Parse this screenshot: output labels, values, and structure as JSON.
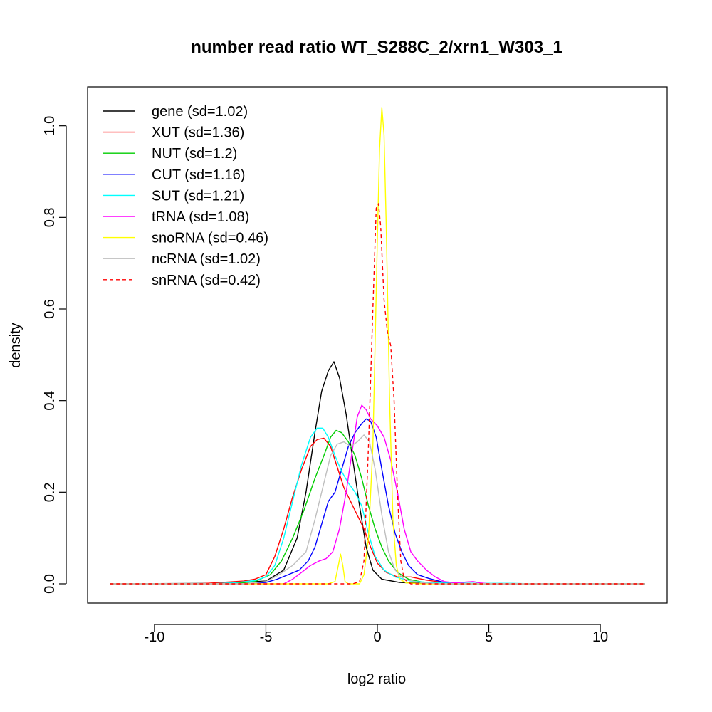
{
  "chart_data": {
    "type": "line",
    "title": "number read ratio WT_S288C_2/xrn1_W303_1",
    "xlabel": "log2 ratio",
    "ylabel": "density",
    "xlim": [
      -13,
      13
    ],
    "ylim": [
      -0.042,
      1.085
    ],
    "x_ticks": [
      -10,
      -5,
      0,
      5,
      10
    ],
    "x_tick_labels": [
      "-10",
      "-5",
      "0",
      "5",
      "10"
    ],
    "y_ticks": [
      0,
      0.2,
      0.4,
      0.6,
      0.8,
      1.0
    ],
    "y_tick_labels": [
      "0.0",
      "0.2",
      "0.4",
      "0.6",
      "0.8",
      "1.0"
    ],
    "grid": false,
    "legend_position": "top-left",
    "series": [
      {
        "name": "gene",
        "legend_label": "gene (sd=1.02)",
        "color": "#000000",
        "dash": "solid",
        "points": [
          [
            -12,
            0
          ],
          [
            -7,
            0.001
          ],
          [
            -5,
            0.006
          ],
          [
            -4.2,
            0.03
          ],
          [
            -3.6,
            0.1
          ],
          [
            -3.2,
            0.2
          ],
          [
            -2.8,
            0.33
          ],
          [
            -2.5,
            0.42
          ],
          [
            -2.2,
            0.465
          ],
          [
            -1.95,
            0.485
          ],
          [
            -1.7,
            0.45
          ],
          [
            -1.4,
            0.37
          ],
          [
            -1.1,
            0.27
          ],
          [
            -0.8,
            0.17
          ],
          [
            -0.5,
            0.08
          ],
          [
            -0.2,
            0.03
          ],
          [
            0.2,
            0.01
          ],
          [
            1,
            0.003
          ],
          [
            2,
            0.001
          ],
          [
            3,
            0
          ],
          [
            12,
            0
          ]
        ]
      },
      {
        "name": "XUT",
        "legend_label": "XUT (sd=1.36)",
        "color": "#ff0000",
        "dash": "solid",
        "points": [
          [
            -12,
            0
          ],
          [
            -8,
            0
          ],
          [
            -7,
            0.003
          ],
          [
            -6,
            0.006
          ],
          [
            -5.5,
            0.01
          ],
          [
            -5,
            0.02
          ],
          [
            -4.6,
            0.06
          ],
          [
            -4.2,
            0.12
          ],
          [
            -3.8,
            0.19
          ],
          [
            -3.4,
            0.25
          ],
          [
            -3,
            0.3
          ],
          [
            -2.7,
            0.315
          ],
          [
            -2.4,
            0.318
          ],
          [
            -2.1,
            0.3
          ],
          [
            -1.8,
            0.255
          ],
          [
            -1.5,
            0.21
          ],
          [
            -1.2,
            0.18
          ],
          [
            -0.9,
            0.15
          ],
          [
            -0.6,
            0.12
          ],
          [
            -0.3,
            0.08
          ],
          [
            0,
            0.045
          ],
          [
            0.4,
            0.025
          ],
          [
            0.9,
            0.015
          ],
          [
            1.5,
            0.015
          ],
          [
            2.2,
            0.008
          ],
          [
            3,
            0.003
          ],
          [
            4,
            0.001
          ],
          [
            5,
            0
          ],
          [
            12,
            0
          ]
        ]
      },
      {
        "name": "NUT",
        "legend_label": "NUT (sd=1.2)",
        "color": "#00cd00",
        "dash": "solid",
        "points": [
          [
            -12,
            0
          ],
          [
            -6.5,
            0
          ],
          [
            -5.5,
            0.005
          ],
          [
            -4.8,
            0.02
          ],
          [
            -4.3,
            0.05
          ],
          [
            -3.8,
            0.1
          ],
          [
            -3.3,
            0.16
          ],
          [
            -2.8,
            0.23
          ],
          [
            -2.4,
            0.28
          ],
          [
            -2.1,
            0.32
          ],
          [
            -1.85,
            0.335
          ],
          [
            -1.6,
            0.33
          ],
          [
            -1.3,
            0.31
          ],
          [
            -1.0,
            0.28
          ],
          [
            -0.7,
            0.23
          ],
          [
            -0.4,
            0.17
          ],
          [
            -0.1,
            0.12
          ],
          [
            0.2,
            0.08
          ],
          [
            0.5,
            0.05
          ],
          [
            0.9,
            0.025
          ],
          [
            1.4,
            0.01
          ],
          [
            2,
            0.004
          ],
          [
            3,
            0.001
          ],
          [
            4,
            0
          ],
          [
            12,
            0
          ]
        ]
      },
      {
        "name": "CUT",
        "legend_label": "CUT (sd=1.16)",
        "color": "#0000ff",
        "dash": "solid",
        "points": [
          [
            -12,
            0
          ],
          [
            -6,
            0
          ],
          [
            -5,
            0.003
          ],
          [
            -4.5,
            0.01
          ],
          [
            -4,
            0.02
          ],
          [
            -3.5,
            0.03
          ],
          [
            -3.1,
            0.05
          ],
          [
            -2.8,
            0.08
          ],
          [
            -2.5,
            0.13
          ],
          [
            -2.2,
            0.18
          ],
          [
            -1.9,
            0.2
          ],
          [
            -1.6,
            0.25
          ],
          [
            -1.3,
            0.3
          ],
          [
            -1.0,
            0.33
          ],
          [
            -0.7,
            0.35
          ],
          [
            -0.5,
            0.36
          ],
          [
            -0.3,
            0.355
          ],
          [
            -0.05,
            0.32
          ],
          [
            0.2,
            0.25
          ],
          [
            0.5,
            0.17
          ],
          [
            0.8,
            0.11
          ],
          [
            1.1,
            0.07
          ],
          [
            1.4,
            0.04
          ],
          [
            1.8,
            0.02
          ],
          [
            2.3,
            0.012
          ],
          [
            3,
            0.003
          ],
          [
            4,
            0.001
          ],
          [
            5,
            0
          ],
          [
            12,
            0
          ]
        ]
      },
      {
        "name": "SUT",
        "legend_label": "SUT (sd=1.21)",
        "color": "#00ffff",
        "dash": "solid",
        "points": [
          [
            -12,
            0
          ],
          [
            -7.5,
            0
          ],
          [
            -6.5,
            0.002
          ],
          [
            -5.5,
            0.007
          ],
          [
            -5,
            0.015
          ],
          [
            -4.6,
            0.04
          ],
          [
            -4.2,
            0.1
          ],
          [
            -3.8,
            0.18
          ],
          [
            -3.4,
            0.26
          ],
          [
            -3.0,
            0.32
          ],
          [
            -2.7,
            0.34
          ],
          [
            -2.45,
            0.34
          ],
          [
            -2.2,
            0.32
          ],
          [
            -1.9,
            0.28
          ],
          [
            -1.6,
            0.245
          ],
          [
            -1.3,
            0.22
          ],
          [
            -1.0,
            0.2
          ],
          [
            -0.7,
            0.17
          ],
          [
            -0.4,
            0.11
          ],
          [
            -0.1,
            0.06
          ],
          [
            0.3,
            0.03
          ],
          [
            0.8,
            0.015
          ],
          [
            1.5,
            0.006
          ],
          [
            2.5,
            0.002
          ],
          [
            4,
            0.001
          ],
          [
            6,
            0.001
          ],
          [
            7,
            0
          ],
          [
            12,
            0
          ]
        ]
      },
      {
        "name": "tRNA",
        "legend_label": "tRNA (sd=1.08)",
        "color": "#ff00ff",
        "dash": "solid",
        "points": [
          [
            -12,
            0
          ],
          [
            -4.2,
            0
          ],
          [
            -3.8,
            0.01
          ],
          [
            -3.4,
            0.025
          ],
          [
            -3.0,
            0.04
          ],
          [
            -2.6,
            0.05
          ],
          [
            -2.3,
            0.055
          ],
          [
            -2.0,
            0.07
          ],
          [
            -1.7,
            0.12
          ],
          [
            -1.4,
            0.2
          ],
          [
            -1.1,
            0.3
          ],
          [
            -0.9,
            0.365
          ],
          [
            -0.7,
            0.39
          ],
          [
            -0.5,
            0.38
          ],
          [
            -0.3,
            0.36
          ],
          [
            0,
            0.345
          ],
          [
            0.3,
            0.32
          ],
          [
            0.6,
            0.27
          ],
          [
            0.9,
            0.2
          ],
          [
            1.2,
            0.12
          ],
          [
            1.5,
            0.07
          ],
          [
            1.8,
            0.05
          ],
          [
            2.2,
            0.03
          ],
          [
            2.6,
            0.015
          ],
          [
            3,
            0.005
          ],
          [
            3.5,
            0.002
          ],
          [
            4,
            0.004
          ],
          [
            4.3,
            0.005
          ],
          [
            4.6,
            0.002
          ],
          [
            5,
            0
          ],
          [
            12,
            0
          ]
        ]
      },
      {
        "name": "snoRNA",
        "legend_label": "snoRNA (sd=0.46)",
        "color": "#ffff00",
        "dash": "solid",
        "points": [
          [
            -12,
            0
          ],
          [
            -2.2,
            0
          ],
          [
            -1.9,
            0.005
          ],
          [
            -1.75,
            0.04
          ],
          [
            -1.65,
            0.065
          ],
          [
            -1.55,
            0.04
          ],
          [
            -1.45,
            0.005
          ],
          [
            -1.3,
            0
          ],
          [
            -0.8,
            0
          ],
          [
            -0.6,
            0.02
          ],
          [
            -0.4,
            0.1
          ],
          [
            -0.2,
            0.3
          ],
          [
            0,
            0.75
          ],
          [
            0.1,
            0.95
          ],
          [
            0.2,
            1.04
          ],
          [
            0.3,
            0.98
          ],
          [
            0.4,
            0.78
          ],
          [
            0.55,
            0.4
          ],
          [
            0.7,
            0.14
          ],
          [
            0.85,
            0.04
          ],
          [
            1,
            0.01
          ],
          [
            1.3,
            0.002
          ],
          [
            2,
            0
          ],
          [
            12,
            0
          ]
        ]
      },
      {
        "name": "ncRNA",
        "legend_label": "ncRNA (sd=1.02)",
        "color": "#bebebe",
        "dash": "solid",
        "points": [
          [
            -12,
            0
          ],
          [
            -6,
            0
          ],
          [
            -5,
            0.005
          ],
          [
            -4.4,
            0.02
          ],
          [
            -3.8,
            0.04
          ],
          [
            -3.2,
            0.07
          ],
          [
            -2.8,
            0.14
          ],
          [
            -2.4,
            0.22
          ],
          [
            -2.1,
            0.28
          ],
          [
            -1.8,
            0.305
          ],
          [
            -1.5,
            0.31
          ],
          [
            -1.2,
            0.3
          ],
          [
            -0.9,
            0.31
          ],
          [
            -0.6,
            0.325
          ],
          [
            -0.35,
            0.31
          ],
          [
            -0.1,
            0.25
          ],
          [
            0.2,
            0.15
          ],
          [
            0.5,
            0.07
          ],
          [
            0.8,
            0.03
          ],
          [
            1.2,
            0.01
          ],
          [
            2,
            0.002
          ],
          [
            3,
            0
          ],
          [
            12,
            0
          ]
        ]
      },
      {
        "name": "snRNA",
        "legend_label": "snRNA (sd=0.42)",
        "color": "#ff0000",
        "dash": "dashed",
        "points": [
          [
            -12,
            0
          ],
          [
            -1.1,
            0
          ],
          [
            -0.8,
            0.005
          ],
          [
            -0.6,
            0.05
          ],
          [
            -0.4,
            0.3
          ],
          [
            -0.2,
            0.6
          ],
          [
            -0.05,
            0.82
          ],
          [
            0.05,
            0.83
          ],
          [
            0.15,
            0.78
          ],
          [
            0.3,
            0.62
          ],
          [
            0.45,
            0.55
          ],
          [
            0.6,
            0.52
          ],
          [
            0.75,
            0.4
          ],
          [
            0.9,
            0.2
          ],
          [
            1.05,
            0.05
          ],
          [
            1.2,
            0.01
          ],
          [
            1.5,
            0
          ],
          [
            12,
            0
          ]
        ]
      }
    ]
  }
}
